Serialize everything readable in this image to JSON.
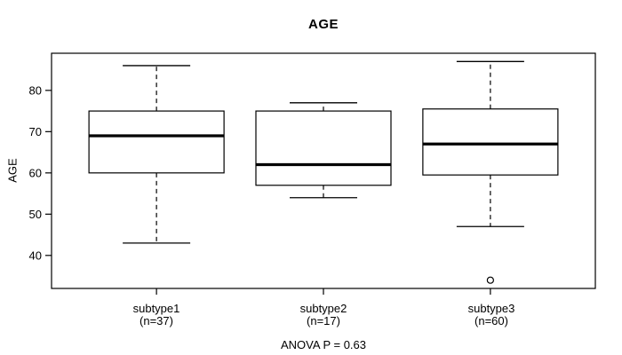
{
  "chart_data": {
    "type": "boxplot",
    "title": "AGE",
    "ylabel": "AGE",
    "xlabel": "",
    "annotation": "ANOVA P = 0.63",
    "ylim": [
      32,
      89
    ],
    "yticks": [
      40,
      50,
      60,
      70,
      80
    ],
    "grid": false,
    "colors": {
      "stroke": "#000000",
      "box_fill": "#ffffff",
      "background": "#ffffff"
    },
    "groups": [
      {
        "label": "subtype1",
        "sublabel": "(n=37)",
        "n": 37,
        "whisker_low": 43,
        "q1": 60,
        "median": 69,
        "q3": 75,
        "whisker_high": 86,
        "outliers": []
      },
      {
        "label": "subtype2",
        "sublabel": "(n=17)",
        "n": 17,
        "whisker_low": 54,
        "q1": 57,
        "median": 62,
        "q3": 75,
        "whisker_high": 77,
        "outliers": []
      },
      {
        "label": "subtype3",
        "sublabel": "(n=60)",
        "n": 60,
        "whisker_low": 47,
        "q1": 59.5,
        "median": 67,
        "q3": 75.5,
        "whisker_high": 87,
        "outliers": [
          34
        ]
      }
    ]
  }
}
